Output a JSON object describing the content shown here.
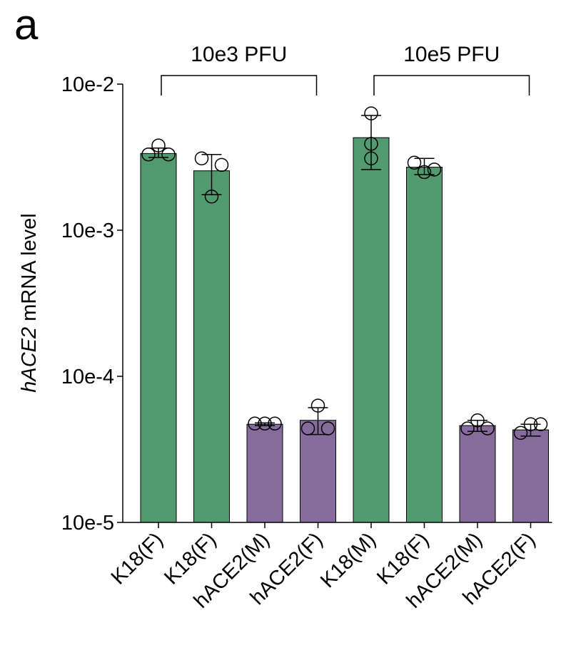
{
  "panel_label": "a",
  "chart_data": {
    "type": "bar",
    "yscale": "log",
    "ylabel_italic": "hACE2",
    "ylabel_rest": " mRNA level",
    "ylim": [
      1e-05,
      0.01
    ],
    "y_ticks": [
      {
        "value": 0.01,
        "label": "10e-2"
      },
      {
        "value": 0.001,
        "label": "10e-3"
      },
      {
        "value": 0.0001,
        "label": "10e-4"
      },
      {
        "value": 1e-05,
        "label": "10e-5"
      }
    ],
    "groups": [
      {
        "label": "10e3 PFU",
        "start": 0,
        "end": 3
      },
      {
        "label": "10e5 PFU",
        "start": 4,
        "end": 7
      }
    ],
    "categories": [
      "K18(F)",
      "K18(F)",
      "hACE2(M)",
      "hACE2(F)",
      "K18(M)",
      "K18(F)",
      "hACE2(M)",
      "hACE2(F)"
    ],
    "values": [
      0.00335,
      0.00255,
      4.7e-05,
      5e-05,
      0.0043,
      0.0027,
      4.6e-05,
      4.3e-05
    ],
    "error_low": [
      0.00315,
      0.00175,
      4.6e-05,
      4e-05,
      0.0026,
      0.0024,
      4.2e-05,
      3.9e-05
    ],
    "error_high": [
      0.00365,
      0.0033,
      4.8e-05,
      6.1e-05,
      0.0061,
      0.0031,
      5e-05,
      4.7e-05
    ],
    "points": [
      [
        {
          "dx": -14,
          "y": 0.0033
        },
        {
          "dx": 0,
          "y": 0.0038
        },
        {
          "dx": 14,
          "y": 0.0033
        }
      ],
      [
        {
          "dx": -14,
          "y": 0.0031
        },
        {
          "dx": 0,
          "y": 0.0017
        },
        {
          "dx": 14,
          "y": 0.0028
        }
      ],
      [
        {
          "dx": -14,
          "y": 4.75e-05
        },
        {
          "dx": 0,
          "y": 4.75e-05
        },
        {
          "dx": 14,
          "y": 4.75e-05
        }
      ],
      [
        {
          "dx": -14,
          "y": 4.4e-05
        },
        {
          "dx": 0,
          "y": 6.3e-05
        },
        {
          "dx": 14,
          "y": 4.4e-05
        }
      ],
      [
        {
          "dx": 0,
          "y": 0.0063
        },
        {
          "dx": 0,
          "y": 0.0039
        },
        {
          "dx": 0,
          "y": 0.0031
        }
      ],
      [
        {
          "dx": -14,
          "y": 0.0029
        },
        {
          "dx": 0,
          "y": 0.0025
        },
        {
          "dx": 14,
          "y": 0.0026
        }
      ],
      [
        {
          "dx": -14,
          "y": 4.4e-05
        },
        {
          "dx": 0,
          "y": 5e-05
        },
        {
          "dx": 14,
          "y": 4.4e-05
        }
      ],
      [
        {
          "dx": -14,
          "y": 4.1e-05
        },
        {
          "dx": 0,
          "y": 4.7e-05
        },
        {
          "dx": 14,
          "y": 4.7e-05
        }
      ]
    ],
    "colors": [
      "#529a6f",
      "#529a6f",
      "#866b9d",
      "#866b9d",
      "#529a6f",
      "#529a6f",
      "#866b9d",
      "#866b9d"
    ],
    "grid": false
  }
}
